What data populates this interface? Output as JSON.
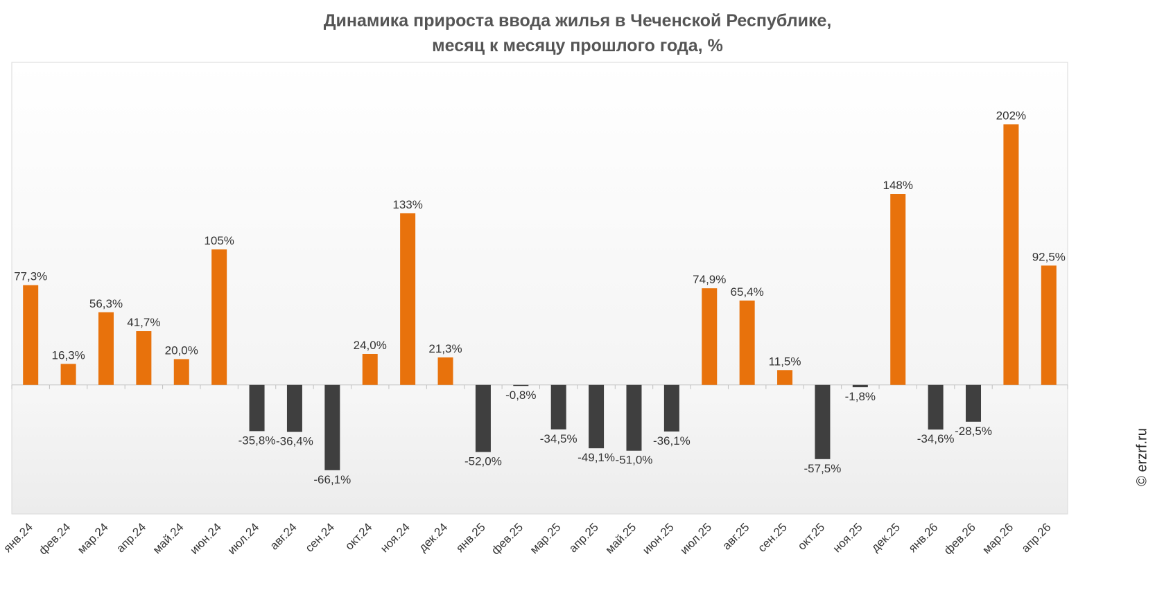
{
  "title_line1": "Динамика прироста ввода жилья в Чеченской Республике,",
  "title_line2": "месяц к месяцу прошлого года, %",
  "copyright": "© erzrf.ru",
  "colors": {
    "positive": "#E8720C",
    "negative": "#3F3F3F",
    "plot_border": "#D9D9D9",
    "zero_line": "#BFBFBF"
  },
  "chart_data": {
    "type": "bar",
    "categories": [
      "янв.24",
      "фев.24",
      "мар.24",
      "апр.24",
      "май.24",
      "июн.24",
      "июл.24",
      "авг.24",
      "сен.24",
      "окт.24",
      "ноя.24",
      "дек.24",
      "янв.25",
      "фев.25",
      "мар.25",
      "апр.25",
      "май.25",
      "июн.25",
      "июл.25",
      "авг.25",
      "сен.25",
      "окт.25",
      "ноя.25",
      "дек.25",
      "янв.26",
      "фев.26",
      "мар.26",
      "апр.26"
    ],
    "values": [
      77.3,
      16.3,
      56.3,
      41.7,
      20.0,
      105,
      -35.8,
      -36.4,
      -66.1,
      24.0,
      133,
      21.3,
      -52.0,
      -0.8,
      -34.5,
      -49.1,
      -51.0,
      -36.1,
      74.9,
      65.4,
      11.5,
      -57.5,
      -1.8,
      148,
      -34.6,
      -28.5,
      202,
      92.5
    ],
    "labels": [
      "77,3%",
      "16,3%",
      "56,3%",
      "41,7%",
      "20,0%",
      "105%",
      "-35,8%",
      "-36,4%",
      "-66,1%",
      "24,0%",
      "133%",
      "21,3%",
      "-52,0%",
      "-0,8%",
      "-34,5%",
      "-49,1%",
      "-51,0%",
      "-36,1%",
      "74,9%",
      "65,4%",
      "11,5%",
      "-57,5%",
      "-1,8%",
      "148%",
      "-34,6%",
      "-28,5%",
      "202%",
      "92,5%"
    ],
    "ylim": [
      -100,
      250
    ],
    "grid": false,
    "legend": "none"
  }
}
